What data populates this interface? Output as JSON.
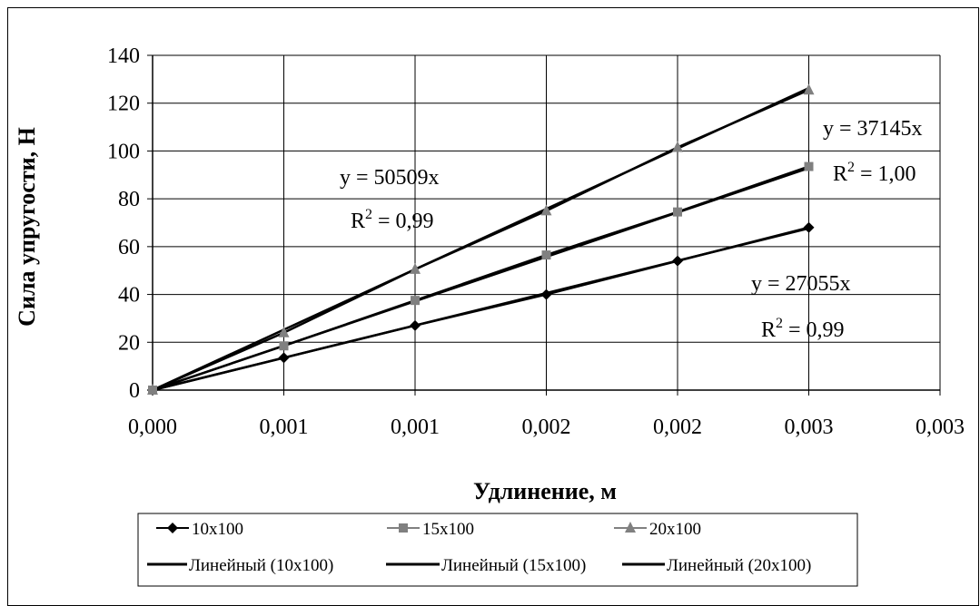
{
  "chart_data": {
    "type": "scatter",
    "xlabel": "Удлинение, м",
    "ylabel": "Сила упругости, Н",
    "x_ticks": [
      "0,000",
      "0,001",
      "0,001",
      "0,002",
      "0,002",
      "0,003",
      "0,003"
    ],
    "y_ticks": [
      "0",
      "20",
      "40",
      "60",
      "80",
      "100",
      "120",
      "140"
    ],
    "xlim": [
      0,
      0.003
    ],
    "ylim": [
      0,
      140
    ],
    "grid": true,
    "legend_position": "bottom",
    "series": [
      {
        "name": "10x100",
        "marker": "diamond",
        "color": "#000000",
        "x": [
          0,
          0.0005,
          0.001,
          0.0015,
          0.002,
          0.0025
        ],
        "y": [
          0,
          13.5,
          27,
          40,
          54,
          68
        ]
      },
      {
        "name": "15x100",
        "marker": "square",
        "color": "#808080",
        "x": [
          0,
          0.0005,
          0.001,
          0.0015,
          0.002,
          0.0025
        ],
        "y": [
          0,
          18.5,
          37.5,
          56.5,
          74.5,
          93.5
        ]
      },
      {
        "name": "20x100",
        "marker": "triangle",
        "color": "#808080",
        "x": [
          0,
          0.0005,
          0.001,
          0.0015,
          0.002,
          0.0025
        ],
        "y": [
          0,
          24,
          50.5,
          75,
          101.5,
          125.5
        ]
      }
    ],
    "trendlines": [
      {
        "name": "Линейный (10x100)",
        "slope": 27055,
        "equation": "y = 27055x",
        "r2_label": "R",
        "r2_sup": "2",
        "r2_value": " = 0,99"
      },
      {
        "name": "Линейный (15x100)",
        "slope": 37145,
        "equation": "y = 37145x",
        "r2_label": "R",
        "r2_sup": "2",
        "r2_value": " = 1,00"
      },
      {
        "name": "Линейный (20x100)",
        "slope": 50509,
        "equation": "y = 50509x",
        "r2_label": "R",
        "r2_sup": "2",
        "r2_value": " = 0,99"
      }
    ]
  }
}
